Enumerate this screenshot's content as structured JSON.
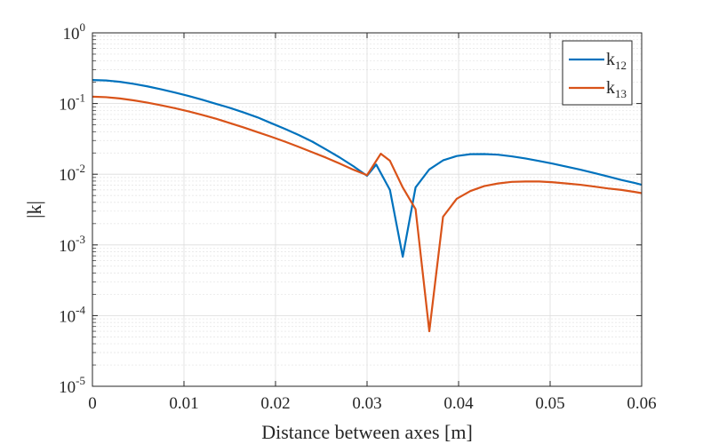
{
  "chart_data": {
    "type": "line",
    "title": "",
    "xlabel": "Distance between axes [m]",
    "ylabel": "|k|",
    "xscale": "linear",
    "yscale": "log",
    "xlim": [
      0,
      0.06
    ],
    "ylim": [
      1e-05,
      1
    ],
    "grid": true,
    "minor_grid": true,
    "legend_position": "top-right",
    "x_ticks": [
      {
        "value": 0,
        "label": "0"
      },
      {
        "value": 0.01,
        "label": "0.01"
      },
      {
        "value": 0.02,
        "label": "0.02"
      },
      {
        "value": 0.03,
        "label": "0.03"
      },
      {
        "value": 0.04,
        "label": "0.04"
      },
      {
        "value": 0.05,
        "label": "0.05"
      },
      {
        "value": 0.06,
        "label": "0.06"
      }
    ],
    "y_ticks": [
      {
        "value": 1e-05,
        "base": "10",
        "exponent": "-5"
      },
      {
        "value": 0.0001,
        "base": "10",
        "exponent": "-4"
      },
      {
        "value": 0.001,
        "base": "10",
        "exponent": "-3"
      },
      {
        "value": 0.01,
        "base": "10",
        "exponent": "-2"
      },
      {
        "value": 0.1,
        "base": "10",
        "exponent": "-1"
      },
      {
        "value": 1,
        "base": "10",
        "exponent": "0"
      }
    ],
    "series": [
      {
        "name": "k12",
        "label_main": "k",
        "label_sub": "12",
        "color": "#0072BD",
        "x": [
          0,
          0.0015,
          0.003,
          0.0045,
          0.006,
          0.0075,
          0.009,
          0.0105,
          0.012,
          0.0135,
          0.015,
          0.0165,
          0.018,
          0.0195,
          0.021,
          0.0225,
          0.024,
          0.0255,
          0.027,
          0.0285,
          0.03,
          0.031,
          0.0325,
          0.0339,
          0.0353,
          0.0368,
          0.0383,
          0.0398,
          0.0413,
          0.0428,
          0.0443,
          0.0458,
          0.0473,
          0.0488,
          0.0503,
          0.0518,
          0.0533,
          0.0548,
          0.0563,
          0.0578,
          0.0593,
          0.06
        ],
        "y": [
          0.215,
          0.212,
          0.203,
          0.19,
          0.175,
          0.159,
          0.143,
          0.128,
          0.113,
          0.099,
          0.087,
          0.075,
          0.064,
          0.053,
          0.044,
          0.036,
          0.029,
          0.0225,
          0.0173,
          0.013,
          0.0095,
          0.0137,
          0.006,
          0.00068,
          0.0065,
          0.0117,
          0.0157,
          0.0181,
          0.0192,
          0.0193,
          0.0189,
          0.0179,
          0.0167,
          0.0154,
          0.0141,
          0.0128,
          0.0116,
          0.0104,
          0.0093,
          0.0083,
          0.0075,
          0.0071
        ]
      },
      {
        "name": "k13",
        "label_main": "k",
        "label_sub": "13",
        "color": "#D95319",
        "x": [
          0,
          0.0015,
          0.003,
          0.0045,
          0.006,
          0.0075,
          0.009,
          0.0105,
          0.012,
          0.0135,
          0.015,
          0.0165,
          0.018,
          0.0195,
          0.021,
          0.0225,
          0.024,
          0.0255,
          0.027,
          0.0285,
          0.03,
          0.0315,
          0.0325,
          0.0339,
          0.0353,
          0.0368,
          0.0383,
          0.0398,
          0.0413,
          0.0428,
          0.0443,
          0.0458,
          0.0473,
          0.0488,
          0.0503,
          0.0518,
          0.0533,
          0.0548,
          0.0563,
          0.0578,
          0.0593,
          0.06
        ],
        "y": [
          0.125,
          0.123,
          0.118,
          0.111,
          0.103,
          0.0945,
          0.086,
          0.0775,
          0.069,
          0.061,
          0.053,
          0.046,
          0.0395,
          0.034,
          0.029,
          0.0245,
          0.0205,
          0.0172,
          0.0142,
          0.0116,
          0.0097,
          0.0195,
          0.0155,
          0.0065,
          0.0032,
          6e-05,
          0.0025,
          0.0045,
          0.0058,
          0.0068,
          0.0074,
          0.0078,
          0.0079,
          0.0079,
          0.0077,
          0.0074,
          0.0071,
          0.0067,
          0.0063,
          0.006,
          0.0056,
          0.0054
        ]
      }
    ]
  }
}
